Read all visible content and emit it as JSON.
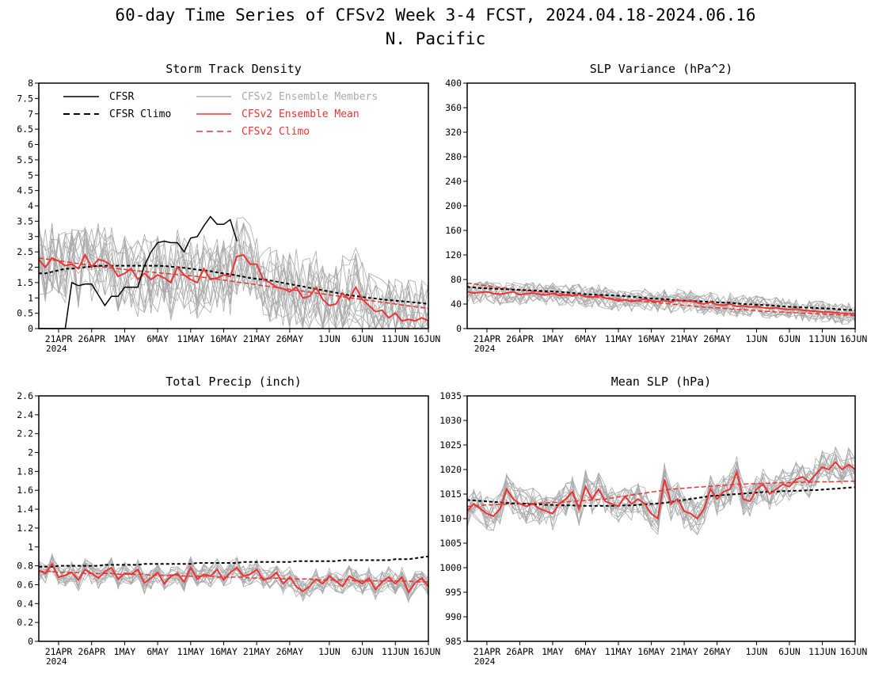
{
  "figure": {
    "title": "60-day Time Series of CFSv2 Week 3-4 FCST, 2024.04.18-2024.06.16",
    "subtitle": "N. Pacific"
  },
  "colors": {
    "cfsr": "#000000",
    "climo_cfsr": "#000000",
    "members": "#aaaaaa",
    "ens_mean": "#ee3333",
    "ens_climo": "#ee3333"
  },
  "legend": {
    "cfsr": "CFSR",
    "cfsr_climo": "CFSR Climo",
    "members": "CFSv2 Ensemble Members",
    "ens_mean": "CFSv2 Ensemble Mean",
    "ens_climo": "CFSv2 Climo"
  },
  "chart_data": [
    {
      "type": "line",
      "title": "Storm Track Density",
      "ylim": [
        0,
        8
      ],
      "yticks": [
        0,
        0.5,
        1,
        1.5,
        2,
        2.5,
        3,
        3.5,
        4,
        4.5,
        5,
        5.5,
        6,
        6.5,
        7,
        7.5,
        8
      ],
      "x_tick_labels": [
        "21APR",
        "26APR",
        "1MAY",
        "6MAY",
        "11MAY",
        "16MAY",
        "21MAY",
        "26MAY",
        "1JUN",
        "6JUN",
        "11JUN",
        "16JUN"
      ],
      "x_year_label": "2024",
      "legend_position": "top-left",
      "series": [
        {
          "key": "cfsr",
          "values": [
            0,
            0,
            0,
            0,
            0,
            1.5,
            1.4,
            1.45,
            1.45,
            1.1,
            0.75,
            1.05,
            1.05,
            1.35,
            1.35,
            1.35,
            2.05,
            2.5,
            2.8,
            2.85,
            2.8,
            2.8,
            2.5,
            2.95,
            3.0,
            3.35,
            3.65,
            3.4,
            3.4,
            3.55,
            2.85
          ]
        },
        {
          "key": "cfsr_climo",
          "values": [
            1.8,
            1.8,
            1.85,
            1.9,
            1.95,
            1.95,
            1.98,
            2.0,
            2.02,
            2.05,
            2.05,
            2.05,
            2.05,
            2.05,
            2.05,
            2.05,
            2.05,
            2.05,
            2.05,
            2.04,
            2.02,
            2.0,
            1.98,
            1.95,
            1.92,
            1.9,
            1.87,
            1.83,
            1.8,
            1.77,
            1.73,
            1.69,
            1.65,
            1.62,
            1.6,
            1.57,
            1.53,
            1.49,
            1.45,
            1.41,
            1.37,
            1.33,
            1.29,
            1.25,
            1.21,
            1.17,
            1.13,
            1.09,
            1.06,
            1.03,
            1.0,
            0.98,
            0.95,
            0.93,
            0.91,
            0.89,
            0.87,
            0.85,
            0.83,
            0.8
          ]
        },
        {
          "key": "ens_mean",
          "values": [
            2.25,
            2.0,
            2.3,
            2.2,
            2.05,
            2.1,
            1.95,
            2.4,
            2.0,
            2.25,
            2.2,
            2.05,
            1.7,
            1.8,
            1.95,
            1.6,
            1.8,
            1.6,
            1.75,
            1.65,
            1.5,
            2.0,
            1.75,
            1.6,
            1.5,
            1.95,
            1.6,
            1.65,
            1.75,
            1.7,
            2.35,
            2.4,
            2.1,
            2.1,
            1.6,
            1.5,
            1.35,
            1.3,
            1.2,
            1.35,
            1.0,
            1.05,
            1.35,
            0.95,
            0.75,
            0.8,
            1.15,
            0.95,
            1.35,
            0.95,
            0.75,
            0.55,
            0.6,
            0.35,
            0.5,
            0.25,
            0.3,
            0.25,
            0.35,
            0.25
          ]
        },
        {
          "key": "ens_climo",
          "values": [
            2.3,
            2.27,
            2.24,
            2.21,
            2.18,
            2.15,
            2.12,
            2.09,
            2.06,
            2.03,
            2.0,
            1.98,
            1.95,
            1.93,
            1.9,
            1.88,
            1.86,
            1.84,
            1.82,
            1.8,
            1.78,
            1.76,
            1.74,
            1.72,
            1.7,
            1.67,
            1.64,
            1.61,
            1.58,
            1.55,
            1.52,
            1.49,
            1.46,
            1.43,
            1.4,
            1.37,
            1.34,
            1.31,
            1.28,
            1.25,
            1.22,
            1.19,
            1.16,
            1.13,
            1.1,
            1.07,
            1.04,
            1.01,
            0.98,
            0.95,
            0.92,
            0.89,
            0.86,
            0.83,
            0.8,
            0.77,
            0.74,
            0.71,
            0.68,
            0.65
          ]
        }
      ]
    },
    {
      "type": "line",
      "title": "SLP Variance (hPa^2)",
      "ylim": [
        0,
        400
      ],
      "yticks": [
        0,
        40,
        80,
        120,
        160,
        200,
        240,
        280,
        320,
        360,
        400
      ],
      "x_tick_labels": [
        "21APR",
        "26APR",
        "1MAY",
        "6MAY",
        "11MAY",
        "16MAY",
        "21MAY",
        "26MAY",
        "1JUN",
        "6JUN",
        "11JUN",
        "16JUN"
      ],
      "x_year_label": "2024",
      "series": [
        {
          "key": "cfsr_climo",
          "values": [
            68,
            67,
            66,
            65.5,
            65,
            64.5,
            64,
            63.5,
            63,
            62.5,
            62,
            61.5,
            61,
            60.5,
            60,
            59,
            58,
            57,
            56,
            55.5,
            55,
            54.5,
            54,
            53.5,
            53,
            52,
            51,
            50,
            49,
            48.5,
            48,
            47,
            46,
            45.5,
            45,
            44.5,
            44,
            43.5,
            43,
            42.5,
            42,
            41,
            40,
            39.5,
            39,
            38.5,
            38,
            37,
            36,
            35.5,
            35,
            34.5,
            34,
            33.5,
            33,
            32.5,
            32,
            31,
            30.5,
            30
          ]
        },
        {
          "key": "ens_mean",
          "values": [
            60,
            58,
            59,
            60,
            57,
            56,
            58,
            60,
            55,
            57,
            58,
            56,
            55,
            57,
            54,
            55,
            53,
            56,
            52,
            51,
            54,
            50,
            48,
            45,
            47,
            44,
            46,
            48,
            45,
            44,
            46,
            43,
            47,
            44,
            46,
            42,
            40,
            43,
            39,
            38,
            40,
            36,
            37,
            35,
            36,
            34,
            33,
            34,
            32,
            31,
            32,
            30,
            29,
            28,
            27,
            27,
            26,
            25,
            24,
            24
          ]
        },
        {
          "key": "ens_climo",
          "values": [
            74,
            73,
            71,
            70,
            68,
            67,
            66,
            64,
            63,
            62,
            61,
            60,
            59,
            58,
            57,
            56,
            55,
            54,
            53,
            52,
            51,
            50,
            49,
            48,
            47,
            46,
            45,
            44,
            43,
            42,
            41,
            40,
            39,
            38,
            37,
            36,
            35,
            34,
            34,
            33,
            32,
            31,
            31,
            30,
            29,
            28,
            28,
            27,
            27,
            26,
            26,
            25,
            25,
            24,
            24,
            23,
            23,
            22,
            22,
            21
          ]
        }
      ]
    },
    {
      "type": "line",
      "title": "Total Precip (inch)",
      "ylim": [
        0,
        2.6
      ],
      "yticks": [
        0,
        0.2,
        0.4,
        0.6,
        0.8,
        1,
        1.2,
        1.4,
        1.6,
        1.8,
        2,
        2.2,
        2.4,
        2.6
      ],
      "x_tick_labels": [
        "21APR",
        "26APR",
        "1MAY",
        "6MAY",
        "11MAY",
        "16MAY",
        "21MAY",
        "26MAY",
        "1JUN",
        "6JUN",
        "11JUN",
        "16JUN"
      ],
      "x_year_label": "2024",
      "series": [
        {
          "key": "cfsr_climo",
          "values": [
            0.79,
            0.79,
            0.79,
            0.8,
            0.8,
            0.8,
            0.8,
            0.8,
            0.8,
            0.8,
            0.81,
            0.81,
            0.81,
            0.81,
            0.81,
            0.81,
            0.82,
            0.82,
            0.82,
            0.82,
            0.82,
            0.82,
            0.82,
            0.82,
            0.83,
            0.83,
            0.83,
            0.83,
            0.83,
            0.83,
            0.83,
            0.84,
            0.84,
            0.84,
            0.84,
            0.84,
            0.84,
            0.84,
            0.84,
            0.85,
            0.85,
            0.85,
            0.85,
            0.85,
            0.85,
            0.85,
            0.86,
            0.86,
            0.86,
            0.86,
            0.86,
            0.86,
            0.86,
            0.86,
            0.87,
            0.87,
            0.87,
            0.88,
            0.89,
            0.9
          ]
        },
        {
          "key": "ens_mean",
          "values": [
            0.75,
            0.72,
            0.82,
            0.68,
            0.7,
            0.73,
            0.65,
            0.76,
            0.72,
            0.67,
            0.74,
            0.78,
            0.66,
            0.72,
            0.71,
            0.76,
            0.62,
            0.67,
            0.73,
            0.61,
            0.69,
            0.72,
            0.63,
            0.78,
            0.66,
            0.71,
            0.69,
            0.76,
            0.65,
            0.73,
            0.78,
            0.69,
            0.71,
            0.76,
            0.65,
            0.67,
            0.73,
            0.61,
            0.68,
            0.58,
            0.53,
            0.58,
            0.66,
            0.61,
            0.69,
            0.64,
            0.58,
            0.69,
            0.65,
            0.61,
            0.67,
            0.55,
            0.63,
            0.68,
            0.61,
            0.68,
            0.52,
            0.62,
            0.67,
            0.58
          ]
        },
        {
          "key": "ens_climo",
          "values": [
            0.74,
            0.74,
            0.74,
            0.73,
            0.73,
            0.73,
            0.73,
            0.72,
            0.72,
            0.72,
            0.72,
            0.72,
            0.71,
            0.71,
            0.71,
            0.71,
            0.71,
            0.7,
            0.7,
            0.7,
            0.7,
            0.7,
            0.69,
            0.69,
            0.69,
            0.69,
            0.69,
            0.68,
            0.68,
            0.68,
            0.68,
            0.68,
            0.67,
            0.67,
            0.67,
            0.67,
            0.67,
            0.66,
            0.66,
            0.66,
            0.66,
            0.66,
            0.65,
            0.65,
            0.65,
            0.65,
            0.65,
            0.65,
            0.64,
            0.64,
            0.64,
            0.64,
            0.64,
            0.64,
            0.64,
            0.64,
            0.64,
            0.63,
            0.63,
            0.63
          ]
        }
      ]
    },
    {
      "type": "line",
      "title": "Mean SLP (hPa)",
      "ylim": [
        985,
        1035
      ],
      "yticks": [
        985,
        990,
        995,
        1000,
        1005,
        1010,
        1015,
        1020,
        1025,
        1030,
        1035
      ],
      "x_tick_labels": [
        "21APR",
        "26APR",
        "1MAY",
        "6MAY",
        "11MAY",
        "16MAY",
        "21MAY",
        "26MAY",
        "1JUN",
        "6JUN",
        "11JUN",
        "16JUN"
      ],
      "x_year_label": "2024",
      "series": [
        {
          "key": "cfsr_climo",
          "values": [
            1013.8,
            1013.7,
            1013.6,
            1013.5,
            1013.4,
            1013.3,
            1013.2,
            1013.1,
            1013.1,
            1013.0,
            1012.9,
            1012.9,
            1012.8,
            1012.8,
            1012.7,
            1012.7,
            1012.7,
            1012.6,
            1012.6,
            1012.6,
            1012.6,
            1012.6,
            1012.6,
            1012.6,
            1012.7,
            1012.7,
            1012.8,
            1012.9,
            1013.0,
            1013.1,
            1013.2,
            1013.4,
            1013.6,
            1013.8,
            1014.0,
            1014.2,
            1014.4,
            1014.6,
            1014.7,
            1014.8,
            1014.9,
            1015.0,
            1015.1,
            1015.2,
            1015.3,
            1015.4,
            1015.5,
            1015.5,
            1015.6,
            1015.6,
            1015.7,
            1015.7,
            1015.8,
            1015.8,
            1015.9,
            1016.0,
            1016.1,
            1016.2,
            1016.3,
            1016.4
          ]
        },
        {
          "key": "ens_mean",
          "values": [
            1011.5,
            1013,
            1012,
            1011,
            1010.5,
            1012,
            1016,
            1014,
            1013,
            1012.5,
            1013,
            1012,
            1011.5,
            1011,
            1013,
            1014,
            1015.5,
            1012,
            1016.5,
            1014,
            1016,
            1013.5,
            1013,
            1012.5,
            1014.5,
            1013,
            1014,
            1013,
            1011,
            1010,
            1018,
            1013,
            1014,
            1011.5,
            1011,
            1010,
            1012,
            1016,
            1014,
            1015.5,
            1016,
            1019.5,
            1014,
            1013.5,
            1016,
            1017,
            1015,
            1016,
            1017,
            1016.5,
            1018,
            1018.5,
            1017.5,
            1019,
            1020.5,
            1020,
            1021.5,
            1020,
            1021,
            1020
          ]
        },
        {
          "key": "ens_climo",
          "values": [
            1012.5,
            1012.6,
            1012.7,
            1012.8,
            1012.8,
            1012.9,
            1012.9,
            1013.0,
            1013.0,
            1013.1,
            1013.1,
            1013.2,
            1013.2,
            1013.3,
            1013.3,
            1013.4,
            1013.5,
            1013.6,
            1013.7,
            1013.8,
            1013.9,
            1014.0,
            1014.2,
            1014.4,
            1014.6,
            1014.8,
            1015.0,
            1015.2,
            1015.4,
            1015.6,
            1015.8,
            1016.0,
            1016.1,
            1016.2,
            1016.3,
            1016.4,
            1016.5,
            1016.6,
            1016.7,
            1016.8,
            1016.9,
            1017.0,
            1017.0,
            1017.1,
            1017.1,
            1017.2,
            1017.2,
            1017.3,
            1017.3,
            1017.3,
            1017.4,
            1017.4,
            1017.4,
            1017.5,
            1017.5,
            1017.5,
            1017.5,
            1017.6,
            1017.6,
            1017.6
          ]
        }
      ]
    }
  ]
}
